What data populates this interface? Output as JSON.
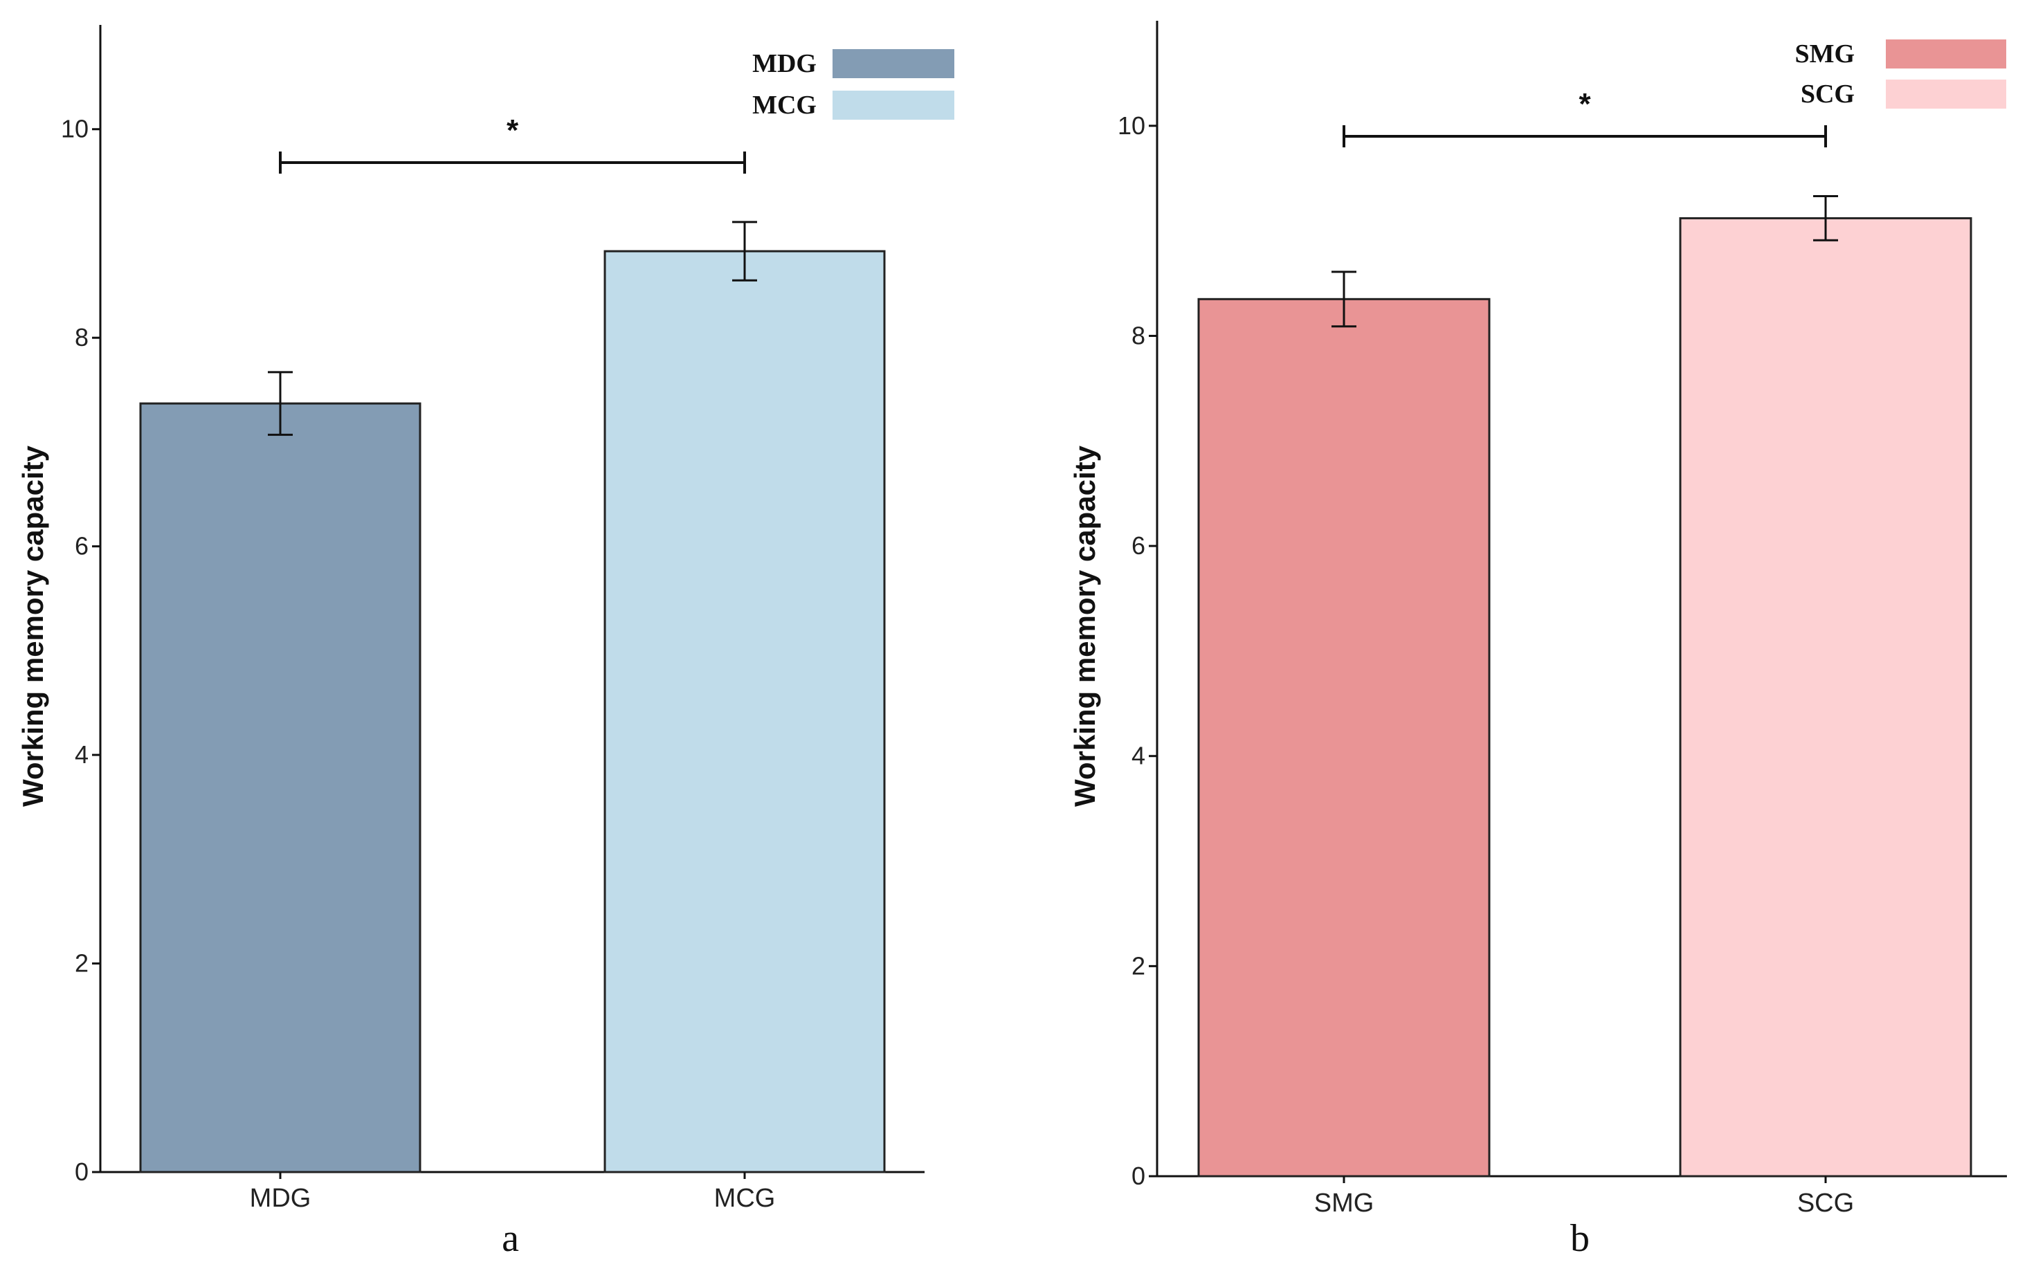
{
  "chart_data": [
    {
      "type": "bar",
      "panel_label": "a",
      "categories": [
        "MDG",
        "MCG"
      ],
      "values": [
        7.37,
        8.83
      ],
      "errors": [
        0.3,
        0.28
      ],
      "colors": [
        "#839cb4",
        "#c0dcea"
      ],
      "ylabel": "Working memory capacity",
      "ylim": [
        0,
        11
      ],
      "yticks": [
        "0",
        "2",
        "4",
        "6",
        "8",
        "10"
      ],
      "legend": [
        {
          "label": "MDG",
          "color": "#839cb4"
        },
        {
          "label": "MCG",
          "color": "#c0dcea"
        }
      ],
      "significance": {
        "between": [
          0,
          1
        ],
        "label": "*",
        "level": 9.68
      }
    },
    {
      "type": "bar",
      "panel_label": "b",
      "categories": [
        "SMG",
        "SCG"
      ],
      "values": [
        8.35,
        9.12
      ],
      "errors": [
        0.26,
        0.21
      ],
      "colors": [
        "#e99495",
        "#fdd1d3"
      ],
      "ylabel": "Working memory capacity",
      "ylim": [
        0,
        11
      ],
      "yticks": [
        "0",
        "2",
        "4",
        "6",
        "8",
        "10"
      ],
      "legend": [
        {
          "label": "SMG",
          "color": "#e99495"
        },
        {
          "label": "SCG",
          "color": "#fdd1d3"
        }
      ],
      "significance": {
        "between": [
          0,
          1
        ],
        "label": "*",
        "level": 9.9
      }
    }
  ]
}
